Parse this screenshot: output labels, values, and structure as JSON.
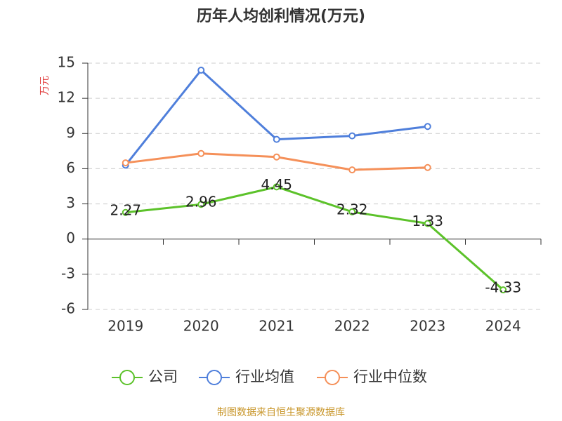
{
  "chart_data": {
    "type": "line",
    "title": "历年人均创利情况(万元)",
    "y_label": "万元",
    "categories": [
      "2019",
      "2020",
      "2021",
      "2022",
      "2023",
      "2024"
    ],
    "series": [
      {
        "name": "公司",
        "color": "#5cc22a",
        "values": [
          2.27,
          2.96,
          4.45,
          2.32,
          1.33,
          -4.33
        ],
        "show_labels": true
      },
      {
        "name": "行业均值",
        "color": "#4f7fdb",
        "values": [
          6.3,
          14.4,
          8.5,
          8.8,
          9.6,
          null
        ]
      },
      {
        "name": "行业中位数",
        "color": "#f59059",
        "values": [
          6.5,
          7.3,
          7.0,
          5.9,
          6.1,
          null
        ]
      }
    ],
    "ylim": [
      -6,
      15
    ],
    "yticks": [
      -6,
      -3,
      0,
      3,
      6,
      9,
      12,
      15
    ],
    "grid": true,
    "legend": "bottom",
    "source": "制图数据来自恒生聚源数据库"
  }
}
